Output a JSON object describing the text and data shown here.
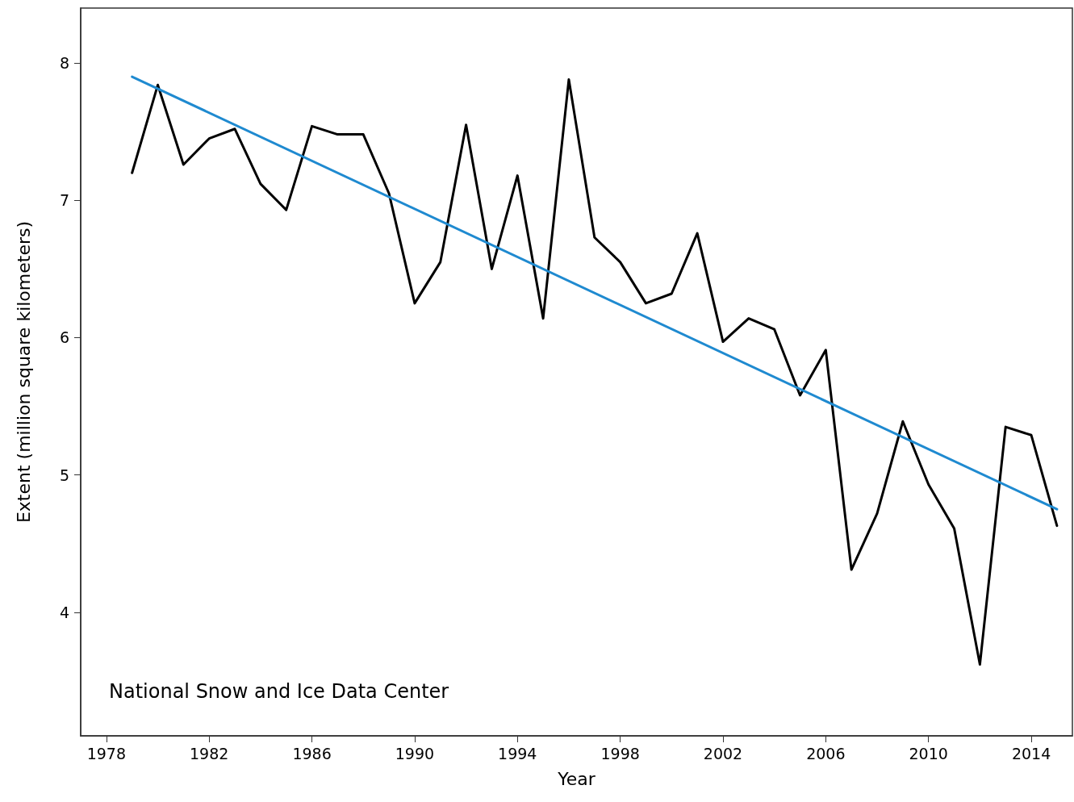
{
  "chart_data": {
    "type": "line",
    "xlabel": "Year",
    "ylabel": "Extent (million square kilometers)",
    "annotations": [
      "National Snow and Ice Data Center"
    ],
    "xlim": [
      1977,
      2015.6
    ],
    "xticks": [
      1978,
      1982,
      1986,
      1990,
      1994,
      1998,
      2002,
      2006,
      2010,
      2014
    ],
    "ylim": [
      3.1,
      8.4
    ],
    "yticks": [
      4,
      5,
      6,
      7,
      8
    ],
    "grid": false,
    "marker": "none",
    "line_style": "solid",
    "series": [
      {
        "color": "#000000",
        "x": [
          1979,
          1980,
          1981,
          1982,
          1983,
          1984,
          1985,
          1986,
          1987,
          1988,
          1989,
          1990,
          1991,
          1992,
          1993,
          1994,
          1995,
          1996,
          1997,
          1998,
          1999,
          2000,
          2001,
          2002,
          2003,
          2004,
          2005,
          2006,
          2007,
          2008,
          2009,
          2010,
          2011,
          2012,
          2013,
          2014,
          2015
        ],
        "values": [
          7.2,
          7.84,
          7.26,
          7.45,
          7.52,
          7.12,
          6.93,
          7.54,
          7.48,
          7.48,
          7.05,
          6.25,
          6.55,
          7.55,
          6.5,
          7.18,
          6.14,
          7.88,
          6.73,
          6.55,
          6.25,
          6.32,
          6.76,
          5.97,
          6.14,
          6.06,
          5.58,
          5.91,
          4.31,
          4.72,
          5.39,
          4.93,
          4.61,
          3.62,
          5.35,
          5.29,
          4.63
        ]
      },
      {
        "type": "line",
        "color": "#1f8ad0",
        "x": [
          1979,
          2015
        ],
        "values": [
          7.9,
          4.75
        ]
      }
    ]
  }
}
